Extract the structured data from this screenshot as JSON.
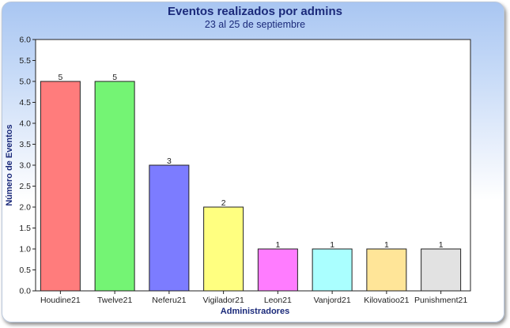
{
  "chart_data": {
    "type": "bar",
    "title": "Eventos realizados por admins",
    "subtitle": "23 al 25 de septiembre",
    "xlabel": "Administradores",
    "ylabel": "Número de Eventos",
    "ylim": [
      0,
      6
    ],
    "y_ticks": [
      "0.0",
      "0.5",
      "1.0",
      "1.5",
      "2.0",
      "2.5",
      "3.0",
      "3.5",
      "4.0",
      "4.5",
      "5.0",
      "5.5",
      "6.0"
    ],
    "categories": [
      "Houdine21",
      "Twelve21",
      "Neferu21",
      "Vigilador21",
      "Leon21",
      "Vanjord21",
      "Kilovatioo21",
      "Punishment21"
    ],
    "values": [
      5,
      5,
      3,
      2,
      1,
      1,
      1,
      1
    ],
    "bar_colors": [
      "#ff7c7c",
      "#74f474",
      "#7c7cff",
      "#ffff80",
      "#ff7cff",
      "#aaffff",
      "#ffe598",
      "#e2e2e2"
    ],
    "grid": false,
    "legend": "none"
  }
}
